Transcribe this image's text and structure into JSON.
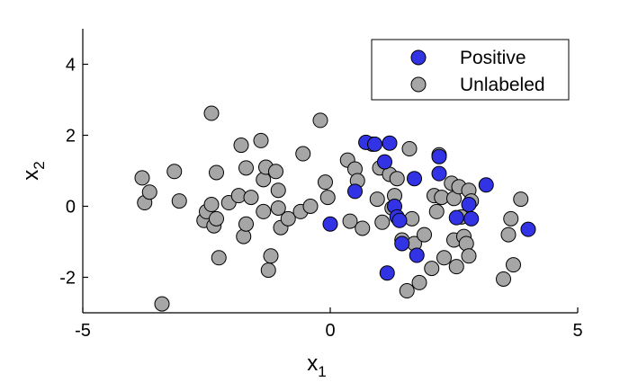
{
  "chart_data": {
    "type": "scatter",
    "xlabel": "x",
    "xlabel_sub": "1",
    "ylabel": "x",
    "ylabel_sub": "2",
    "xlim": [
      -5,
      5
    ],
    "ylim": [
      -3,
      5
    ],
    "xticks": [
      -5,
      0,
      5
    ],
    "yticks": [
      -2,
      0,
      2,
      4
    ],
    "grid": false,
    "legend_position": "top-right",
    "series": [
      {
        "name": "Positive",
        "color": "#3333e6",
        "points": [
          [
            0.0,
            -0.5
          ],
          [
            0.5,
            0.42
          ],
          [
            0.72,
            1.8
          ],
          [
            0.9,
            1.75
          ],
          [
            1.1,
            1.25
          ],
          [
            1.2,
            1.78
          ],
          [
            1.3,
            0.0
          ],
          [
            1.35,
            -0.3
          ],
          [
            1.4,
            -0.4
          ],
          [
            1.45,
            -1.05
          ],
          [
            1.15,
            -1.88
          ],
          [
            1.7,
            0.78
          ],
          [
            1.75,
            -1.38
          ],
          [
            2.2,
            1.4
          ],
          [
            2.2,
            0.92
          ],
          [
            2.55,
            -0.32
          ],
          [
            2.8,
            0.05
          ],
          [
            2.85,
            -0.35
          ],
          [
            3.15,
            0.6
          ],
          [
            4.0,
            -0.65
          ]
        ]
      },
      {
        "name": "Unlabeled",
        "color": "#a6a6a6",
        "points": [
          [
            -3.4,
            -2.75
          ],
          [
            -3.8,
            0.8
          ],
          [
            -3.75,
            0.1
          ],
          [
            -3.65,
            0.4
          ],
          [
            -3.15,
            0.98
          ],
          [
            -3.05,
            0.15
          ],
          [
            -2.55,
            -0.4
          ],
          [
            -2.5,
            -0.15
          ],
          [
            -2.4,
            0.05
          ],
          [
            -2.35,
            -0.55
          ],
          [
            -2.3,
            -0.35
          ],
          [
            -2.4,
            2.62
          ],
          [
            -2.3,
            0.95
          ],
          [
            -2.25,
            -1.45
          ],
          [
            -2.05,
            0.1
          ],
          [
            -1.85,
            0.3
          ],
          [
            -1.8,
            1.72
          ],
          [
            -1.75,
            -0.85
          ],
          [
            -1.7,
            -0.5
          ],
          [
            -1.7,
            1.08
          ],
          [
            -1.6,
            0.25
          ],
          [
            -1.4,
            1.85
          ],
          [
            -1.35,
            0.75
          ],
          [
            -1.35,
            -0.15
          ],
          [
            -1.3,
            1.1
          ],
          [
            -1.2,
            -1.4
          ],
          [
            -1.25,
            -1.8
          ],
          [
            -1.1,
            0.98
          ],
          [
            -1.05,
            0.45
          ],
          [
            -1.05,
            -0.05
          ],
          [
            -1.0,
            -0.6
          ],
          [
            -0.85,
            -0.35
          ],
          [
            -0.6,
            -0.15
          ],
          [
            -0.55,
            1.48
          ],
          [
            -0.4,
            0.0
          ],
          [
            -0.2,
            2.42
          ],
          [
            -0.05,
            0.25
          ],
          [
            -0.1,
            0.68
          ],
          [
            0.35,
            1.3
          ],
          [
            0.4,
            -0.42
          ],
          [
            0.5,
            1.05
          ],
          [
            0.55,
            0.72
          ],
          [
            0.65,
            -0.62
          ],
          [
            0.85,
            1.75
          ],
          [
            0.95,
            0.2
          ],
          [
            1.0,
            1.08
          ],
          [
            1.05,
            -0.45
          ],
          [
            1.2,
            0.9
          ],
          [
            1.25,
            -0.05
          ],
          [
            1.3,
            0.3
          ],
          [
            1.35,
            0.78
          ],
          [
            1.45,
            -0.95
          ],
          [
            1.55,
            -2.38
          ],
          [
            1.6,
            1.62
          ],
          [
            1.65,
            -0.35
          ],
          [
            1.7,
            -1.05
          ],
          [
            1.8,
            -2.15
          ],
          [
            1.9,
            -0.8
          ],
          [
            2.05,
            -1.75
          ],
          [
            2.1,
            0.3
          ],
          [
            2.15,
            -0.15
          ],
          [
            2.2,
            1.45
          ],
          [
            2.25,
            0.25
          ],
          [
            2.3,
            -1.45
          ],
          [
            2.45,
            0.65
          ],
          [
            2.5,
            -0.95
          ],
          [
            2.5,
            0.22
          ],
          [
            2.55,
            -1.7
          ],
          [
            2.6,
            0.55
          ],
          [
            2.65,
            -0.3
          ],
          [
            2.7,
            -0.85
          ],
          [
            2.75,
            -1.05
          ],
          [
            2.8,
            0.45
          ],
          [
            2.8,
            -1.4
          ],
          [
            2.85,
            0.15
          ],
          [
            3.5,
            -2.05
          ],
          [
            3.6,
            -0.8
          ],
          [
            3.65,
            -0.35
          ],
          [
            3.7,
            -1.65
          ],
          [
            3.85,
            0.2
          ]
        ]
      }
    ]
  }
}
